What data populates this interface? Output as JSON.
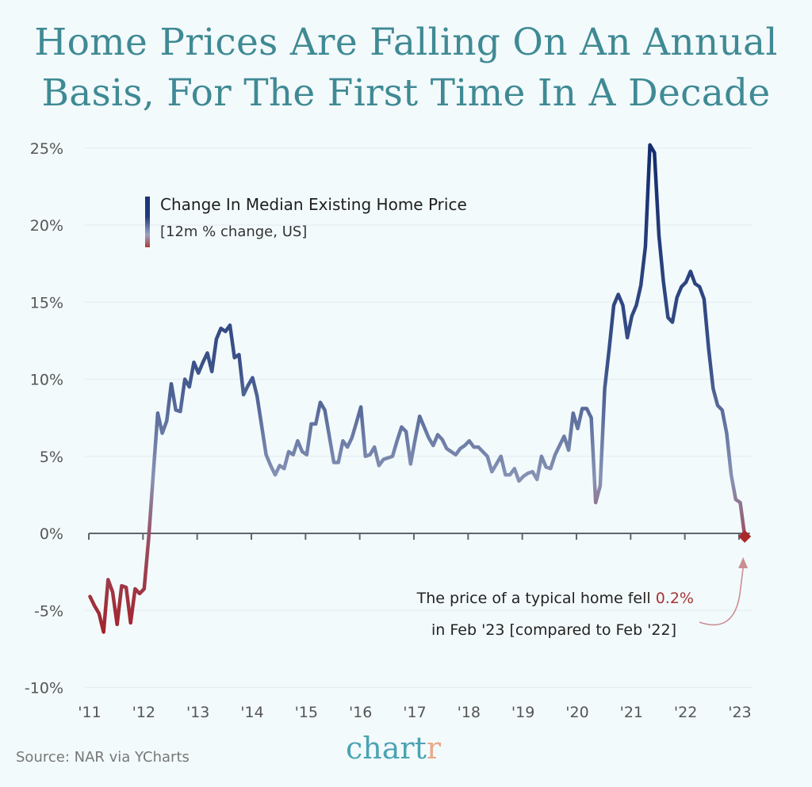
{
  "title": {
    "line1": "Home Prices Are Falling On An Annual",
    "line2": "Basis, For The First Time In A Decade"
  },
  "legend": {
    "title": "Change In Median Existing Home Price",
    "subtitle": "[12m % change, US]"
  },
  "annotation": {
    "prefix": "The price of a typical home fell ",
    "highlight": "0.2%",
    "line2": "in Feb '23 [compared to Feb '22]"
  },
  "footer": {
    "source": "Source: NAR via YCharts",
    "logo_main": "chart",
    "logo_accent": "r"
  },
  "colors": {
    "title": "#3f8a94",
    "line_high": "#1a3375",
    "line_mid": "#7f8fb3",
    "line_low": "#a82a2a",
    "marker": "#a82a2a",
    "highlight": "#a83434",
    "logo": "#4aa3b3",
    "logo_accent": "#e8a98a"
  },
  "chart_data": {
    "type": "line",
    "title": "Home Prices Are Falling On An Annual Basis, For The First Time In A Decade",
    "xlabel": "",
    "ylabel": "",
    "legend": [
      "Change In Median Existing Home Price [12m % change, US]"
    ],
    "legend_position": "top-left",
    "grid": true,
    "ylim": [
      -10,
      25
    ],
    "yticks": [
      25,
      20,
      15,
      10,
      5,
      0,
      -5,
      -10
    ],
    "ytick_labels": [
      "25%",
      "20%",
      "15%",
      "10%",
      "5%",
      "0%",
      "-5%",
      "-10%"
    ],
    "xlim": [
      2011,
      2023.2
    ],
    "xticks": [
      2011,
      2012,
      2013,
      2014,
      2015,
      2016,
      2017,
      2018,
      2019,
      2020,
      2021,
      2022,
      2023
    ],
    "xtick_labels": [
      "'11",
      "'12",
      "'13",
      "'14",
      "'15",
      "'16",
      "'17",
      "'18",
      "'19",
      "'20",
      "'21",
      "'22",
      "'23"
    ],
    "start": "2011-01",
    "frequency": "monthly",
    "series": [
      {
        "name": "Change In Median Existing Home Price",
        "unit": "%",
        "values": [
          -4.1,
          -4.7,
          -5.2,
          -6.4,
          -3.0,
          -3.8,
          -5.9,
          -3.4,
          -3.5,
          -5.8,
          -3.6,
          -3.9,
          -3.6,
          -0.3,
          3.8,
          7.8,
          6.5,
          7.3,
          9.7,
          8.0,
          7.9,
          10.0,
          9.5,
          11.1,
          10.4,
          11.1,
          11.7,
          10.5,
          12.6,
          13.3,
          13.1,
          13.5,
          11.4,
          11.6,
          9.0,
          9.6,
          10.1,
          8.9,
          7.0,
          5.1,
          4.4,
          3.8,
          4.4,
          4.2,
          5.3,
          5.1,
          6.0,
          5.3,
          5.1,
          7.1,
          7.1,
          8.5,
          8.0,
          6.3,
          4.6,
          4.6,
          6.0,
          5.6,
          6.2,
          7.2,
          8.2,
          5.0,
          5.1,
          5.6,
          4.4,
          4.8,
          4.9,
          5.0,
          6.0,
          6.9,
          6.6,
          4.5,
          6.1,
          7.6,
          6.9,
          6.2,
          5.7,
          6.4,
          6.1,
          5.5,
          5.3,
          5.1,
          5.5,
          5.7,
          6.0,
          5.6,
          5.6,
          5.3,
          5.0,
          4.0,
          4.5,
          5.0,
          3.8,
          3.8,
          4.2,
          3.4,
          3.7,
          3.9,
          4.0,
          3.5,
          5.0,
          4.3,
          4.2,
          5.1,
          5.7,
          6.3,
          5.4,
          7.8,
          6.8,
          8.1,
          8.1,
          7.5,
          2.0,
          3.1,
          9.4,
          12.0,
          14.8,
          15.5,
          14.8,
          12.7,
          14.1,
          14.8,
          16.1,
          18.6,
          25.2,
          24.7,
          19.3,
          16.3,
          14.0,
          13.7,
          15.3,
          16.0,
          16.3,
          17.0,
          16.2,
          16.0,
          15.2,
          12.0,
          9.4,
          8.3,
          8.0,
          6.5,
          3.8,
          2.2,
          2.0,
          -0.2
        ]
      }
    ],
    "annotations": [
      {
        "text": "The price of a typical home fell 0.2% in Feb '23 [compared to Feb '22]",
        "date": "2023-02",
        "value": -0.2,
        "marker": "diamond"
      }
    ]
  }
}
